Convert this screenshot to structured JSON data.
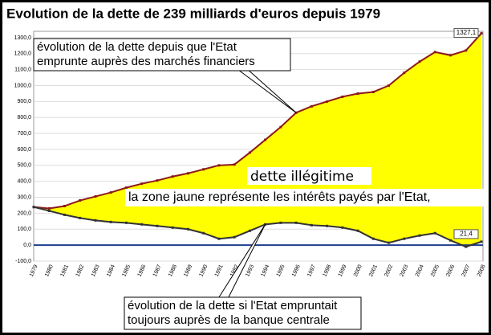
{
  "chart_data": {
    "type": "line",
    "title": "Evolution de la dette de 239 milliards d'euros depuis 1979",
    "categories": [
      "1979",
      "1980",
      "1981",
      "1982",
      "1983",
      "1984",
      "1985",
      "1986",
      "1987",
      "1988",
      "1989",
      "1990",
      "1991",
      "1992",
      "1993",
      "1994",
      "1995",
      "1996",
      "1997",
      "1998",
      "1999",
      "2000",
      "2001",
      "2002",
      "2003",
      "2004",
      "2005",
      "2006",
      "2007",
      "2008"
    ],
    "series": [
      {
        "name": "évolution de la dette depuis que l'Etat emprunte auprès des marchés financiers",
        "color": "#8b1a1a",
        "values": [
          239,
          230,
          245,
          280,
          305,
          330,
          360,
          385,
          405,
          430,
          450,
          475,
          500,
          505,
          580,
          660,
          740,
          830,
          870,
          900,
          930,
          950,
          960,
          1000,
          1080,
          1150,
          1210,
          1190,
          1220,
          1327.1
        ],
        "value_labels": [
          null,
          null,
          null,
          null,
          null,
          null,
          null,
          null,
          null,
          null,
          null,
          null,
          null,
          null,
          null,
          null,
          null,
          null,
          null,
          null,
          null,
          null,
          null,
          null,
          null,
          null,
          null,
          null,
          null,
          "1327,1"
        ]
      },
      {
        "name": "évolution de la dette si l'Etat empruntait toujours auprès de la banque centrale",
        "color": "#333333",
        "values": [
          239,
          215,
          190,
          170,
          155,
          145,
          140,
          130,
          120,
          110,
          100,
          75,
          40,
          50,
          90,
          130,
          140,
          140,
          125,
          120,
          110,
          90,
          40,
          15,
          40,
          60,
          75,
          30,
          -10,
          21.4
        ],
        "value_labels": [
          null,
          null,
          null,
          null,
          null,
          null,
          null,
          null,
          null,
          null,
          null,
          null,
          null,
          null,
          null,
          null,
          null,
          null,
          null,
          null,
          null,
          null,
          null,
          null,
          null,
          null,
          null,
          null,
          null,
          "21,4"
        ]
      }
    ],
    "callouts": [
      [
        "évolution de la dette depuis que l'Etat",
        "emprunte auprès des marchés financiers"
      ],
      [
        "évolution de la dette si l'Etat empruntait",
        "toujours auprès de la banque centrale"
      ]
    ],
    "annotations": [
      "dette illégitime",
      "la zone jaune représente les intérêts payés par l'Etat,"
    ],
    "fill_color": "#ffff00",
    "ylim": [
      -100,
      1340
    ],
    "yticks": [
      {
        "value": -100,
        "label": "-100,0"
      },
      {
        "value": 0,
        "label": "0,0"
      },
      {
        "value": 100,
        "label": "100,0"
      },
      {
        "value": 200,
        "label": "200,0"
      },
      {
        "value": 300,
        "label": "300,0"
      },
      {
        "value": 400,
        "label": "400,0"
      },
      {
        "value": 500,
        "label": "500,0"
      },
      {
        "value": 600,
        "label": "600,0"
      },
      {
        "value": 700,
        "label": "700,0"
      },
      {
        "value": 800,
        "label": "800,0"
      },
      {
        "value": 900,
        "label": "900,0"
      },
      {
        "value": 1000,
        "label": "1000,0"
      },
      {
        "value": 1100,
        "label": "1100,0"
      },
      {
        "value": 1200,
        "label": "1200,0"
      },
      {
        "value": 1300,
        "label": "1300,0"
      }
    ],
    "grid": true
  }
}
